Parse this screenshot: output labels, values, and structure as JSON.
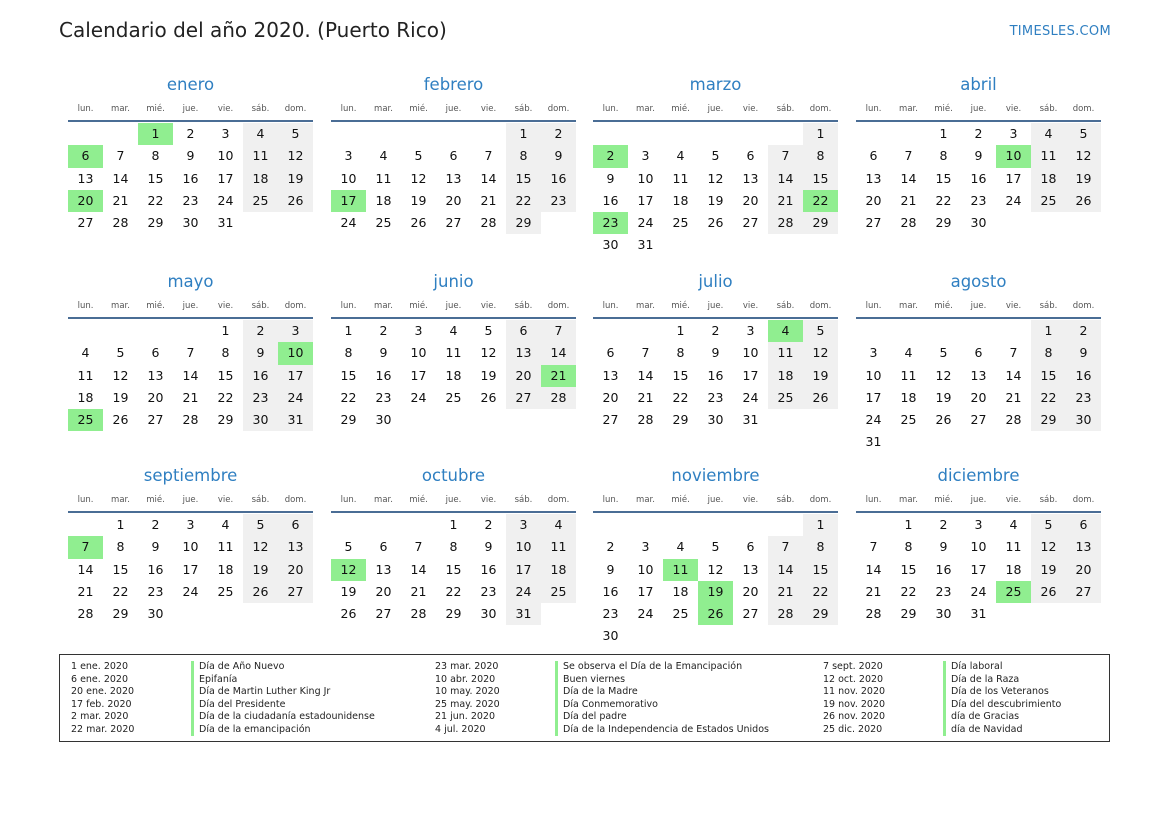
{
  "header": {
    "title": "Calendario del año 2020. (Puerto Rico)",
    "brand": "TIMESLES.COM"
  },
  "weekdays": [
    "lun.",
    "mar.",
    "mié.",
    "jue.",
    "vie.",
    "sáb.",
    "dom."
  ],
  "months": [
    {
      "name": "enero",
      "offset": 2,
      "days": 31,
      "holidays": [
        1,
        6,
        20
      ]
    },
    {
      "name": "febrero",
      "offset": 5,
      "days": 29,
      "holidays": [
        17
      ]
    },
    {
      "name": "marzo",
      "offset": 6,
      "days": 31,
      "holidays": [
        2,
        22,
        23
      ]
    },
    {
      "name": "abril",
      "offset": 2,
      "days": 30,
      "holidays": [
        10
      ]
    },
    {
      "name": "mayo",
      "offset": 4,
      "days": 31,
      "holidays": [
        10,
        25
      ]
    },
    {
      "name": "junio",
      "offset": 0,
      "days": 30,
      "holidays": [
        21
      ]
    },
    {
      "name": "julio",
      "offset": 2,
      "days": 31,
      "holidays": [
        4
      ]
    },
    {
      "name": "agosto",
      "offset": 5,
      "days": 31,
      "holidays": []
    },
    {
      "name": "septiembre",
      "offset": 1,
      "days": 30,
      "holidays": [
        7
      ]
    },
    {
      "name": "octubre",
      "offset": 3,
      "days": 31,
      "holidays": [
        12
      ]
    },
    {
      "name": "noviembre",
      "offset": 6,
      "days": 30,
      "holidays": [
        11,
        19,
        26
      ]
    },
    {
      "name": "diciembre",
      "offset": 1,
      "days": 31,
      "holidays": [
        25
      ]
    }
  ],
  "holiday_columns": [
    [
      {
        "date": "1 ene. 2020",
        "name": "Día de Año Nuevo"
      },
      {
        "date": "6 ene. 2020",
        "name": "Epifanía"
      },
      {
        "date": "20 ene. 2020",
        "name": "Día de Martin Luther King Jr"
      },
      {
        "date": "17 feb. 2020",
        "name": "Día del Presidente"
      },
      {
        "date": "2 mar. 2020",
        "name": "Día de la ciudadanía estadounidense"
      },
      {
        "date": "22 mar. 2020",
        "name": "Día de la emancipación"
      }
    ],
    [
      {
        "date": "23 mar. 2020",
        "name": "Se observa el Día de la Emancipación"
      },
      {
        "date": "10 abr. 2020",
        "name": "Buen viernes"
      },
      {
        "date": "10 may. 2020",
        "name": "Día de la Madre"
      },
      {
        "date": "25 may. 2020",
        "name": "Día Conmemorativo"
      },
      {
        "date": "21 jun. 2020",
        "name": "Día del padre"
      },
      {
        "date": "4 jul. 2020",
        "name": "Día de la Independencia de Estados Unidos"
      }
    ],
    [
      {
        "date": "7 sept. 2020",
        "name": "Día laboral"
      },
      {
        "date": "12 oct. 2020",
        "name": "Día de la Raza"
      },
      {
        "date": "11 nov. 2020",
        "name": "Día de los Veteranos"
      },
      {
        "date": "19 nov. 2020",
        "name": "Día del descubrimiento"
      },
      {
        "date": "26 nov. 2020",
        "name": "día de Gracias"
      },
      {
        "date": "25 dic. 2020",
        "name": "día de Navidad"
      }
    ]
  ]
}
